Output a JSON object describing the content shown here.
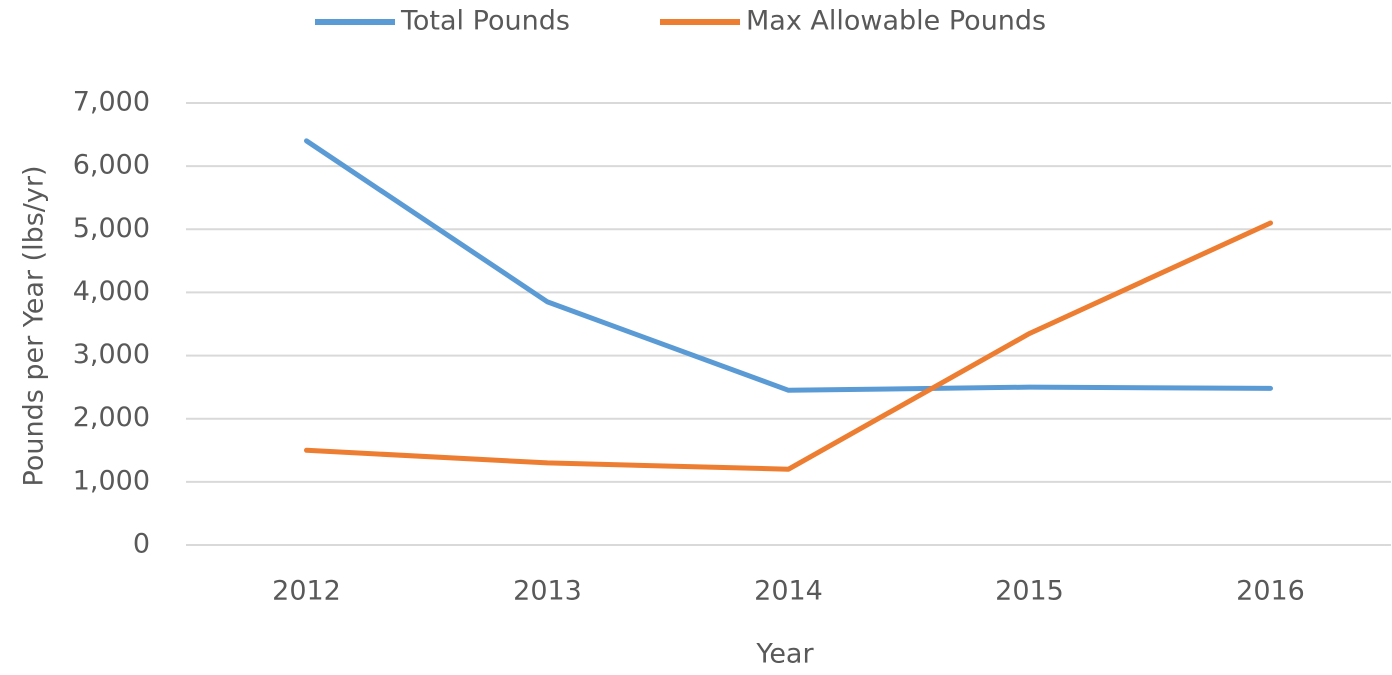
{
  "chart_data": {
    "type": "line",
    "categories": [
      "2012",
      "2013",
      "2014",
      "2015",
      "2016"
    ],
    "series": [
      {
        "name": "Total Pounds",
        "color": "#5b9bd5",
        "values": [
          6400,
          3850,
          2450,
          2500,
          2480
        ]
      },
      {
        "name": "Max Allowable Pounds",
        "color": "#ed7d31",
        "values": [
          1500,
          1300,
          1200,
          3350,
          5100
        ]
      }
    ],
    "x_label": "Year",
    "y_label": "Pounds per Year (lbs/yr)",
    "ylim": [
      0,
      7000
    ],
    "yticks": [
      0,
      {
        "value": 1000,
        "label": "1,000"
      },
      {
        "value": 2000,
        "label": "2,000"
      },
      {
        "value": 3000,
        "label": "3,000"
      },
      {
        "value": 4000,
        "label": "4,000"
      },
      {
        "value": 5000,
        "label": "5,000"
      },
      {
        "value": 6000,
        "label": "6,000"
      },
      {
        "value": 7000,
        "label": "7,000"
      }
    ],
    "grid": true,
    "legend": "top"
  }
}
